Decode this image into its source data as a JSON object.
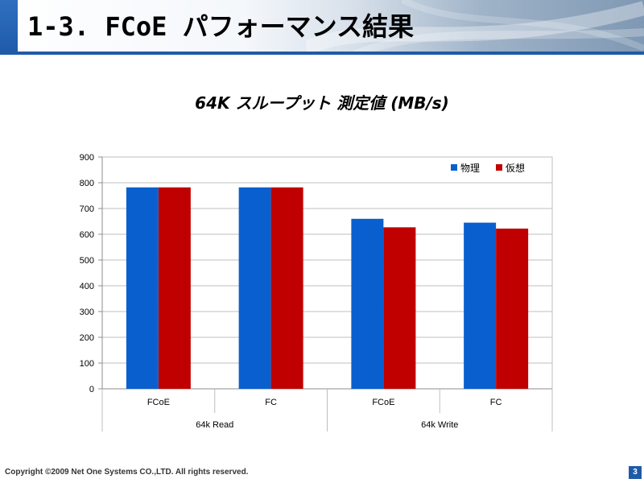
{
  "slide": {
    "title": "1-3. FCoE パフォーマンス結果",
    "footer": "Copyright ©2009 Net One Systems CO.,LTD. All rights reserved.",
    "page_number": "3"
  },
  "chart_data": {
    "type": "bar",
    "title": "64K スループット 測定値 (MB/s)",
    "categories": [
      "FCoE",
      "FC",
      "FCoE",
      "FC"
    ],
    "groups": [
      {
        "label": "64k Read",
        "span": 2
      },
      {
        "label": "64k Write",
        "span": 2
      }
    ],
    "series": [
      {
        "name": "物理",
        "color": "#0a5fcf",
        "values": [
          782,
          782,
          660,
          645
        ]
      },
      {
        "name": "仮想",
        "color": "#c00000",
        "values": [
          782,
          782,
          627,
          622
        ]
      }
    ],
    "ylim": [
      0,
      900
    ],
    "yticks": [
      0,
      100,
      200,
      300,
      400,
      500,
      600,
      700,
      800,
      900
    ],
    "legend_position": "top-right",
    "grid": true
  }
}
